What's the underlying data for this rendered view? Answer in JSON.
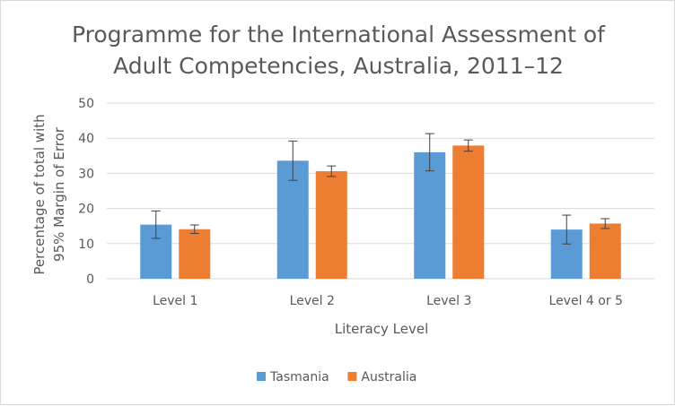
{
  "chart_data": {
    "type": "bar",
    "title": [
      "Programme for the International Assessment of",
      "Adult Competencies,  Australia, 2011–12"
    ],
    "xlabel": "Literacy Level",
    "ylabel": [
      "Percentage of total with",
      "95% Margin of Error"
    ],
    "categories": [
      "Level 1",
      "Level 2",
      "Level 3",
      "Level 4 or 5"
    ],
    "ylim": [
      0,
      50
    ],
    "yticks": [
      0,
      10,
      20,
      30,
      40,
      50
    ],
    "grid": true,
    "legend": "bottom",
    "series": [
      {
        "name": "Tasmania",
        "color": "#5b9bd5",
        "values": [
          15.4,
          33.6,
          36.0,
          14.0
        ],
        "error": [
          3.9,
          5.6,
          5.3,
          4.1
        ]
      },
      {
        "name": "Australia",
        "color": "#ed7d31",
        "values": [
          14.1,
          30.6,
          37.9,
          15.7
        ],
        "error": [
          1.2,
          1.5,
          1.6,
          1.4
        ]
      }
    ]
  }
}
